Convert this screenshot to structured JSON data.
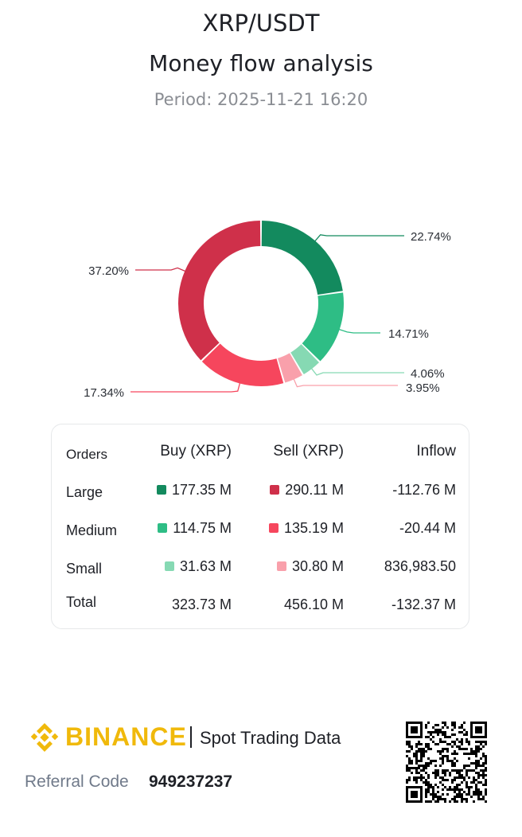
{
  "header": {
    "pair": "XRP/USDT",
    "title": "Money flow analysis",
    "period": "Period: 2025-11-21 16:20"
  },
  "colors": {
    "buy_large": "#138a5e",
    "buy_medium": "#2ebd85",
    "buy_small": "#86d9b3",
    "sell_large": "#cf304a",
    "sell_medium": "#f6465d",
    "sell_small": "#f9a0ab",
    "brand": "#f0b90b"
  },
  "chart_data": {
    "type": "pie",
    "donut": true,
    "slices": [
      {
        "label": "Buy Large",
        "value": 22.74,
        "text": "22.74%",
        "color": "#138a5e"
      },
      {
        "label": "Buy Medium",
        "value": 14.71,
        "text": "14.71%",
        "color": "#2ebd85"
      },
      {
        "label": "Buy Small",
        "value": 4.06,
        "text": "4.06%",
        "color": "#86d9b3"
      },
      {
        "label": "Sell Small",
        "value": 3.95,
        "text": "3.95%",
        "color": "#f9a0ab"
      },
      {
        "label": "Sell Medium",
        "value": 17.34,
        "text": "17.34%",
        "color": "#f6465d"
      },
      {
        "label": "Sell Large",
        "value": 37.2,
        "text": "37.20%",
        "color": "#cf304a"
      }
    ]
  },
  "table": {
    "headers": {
      "orders": "Orders",
      "buy": "Buy (XRP)",
      "sell": "Sell (XRP)",
      "inflow": "Inflow"
    },
    "rows": [
      {
        "label": "Large",
        "buy": "177.35 M",
        "sell": "290.11 M",
        "inflow": "-112.76 M"
      },
      {
        "label": "Medium",
        "buy": "114.75 M",
        "sell": "135.19 M",
        "inflow": "-20.44 M"
      },
      {
        "label": "Small",
        "buy": "31.63 M",
        "sell": "30.80 M",
        "inflow": "836,983.50"
      }
    ],
    "total": {
      "label": "Total",
      "buy": "323.73 M",
      "sell": "456.10 M",
      "inflow": "-132.37 M"
    }
  },
  "footer": {
    "brand": "BINANCE",
    "tagline": "Spot Trading Data",
    "referral_label": "Referral Code",
    "referral_code": "949237237"
  }
}
